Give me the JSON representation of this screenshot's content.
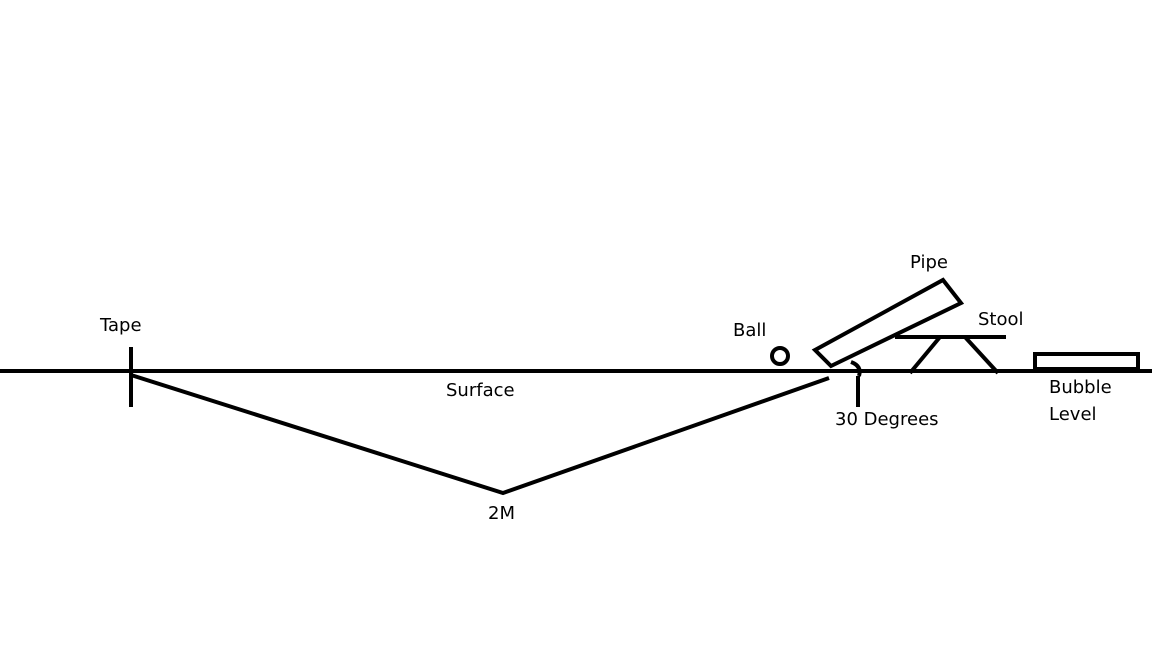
{
  "colors": {
    "background": "#ffffff",
    "ink": "#000000"
  },
  "labels": {
    "tape": "Tape",
    "surface": "Surface",
    "distance": "2M",
    "ball": "Ball",
    "pipe": "Pipe",
    "stool": "Stool",
    "angle": "30 Degrees",
    "bubble_level_line1": "Bubble",
    "bubble_level_line2": "Level"
  }
}
